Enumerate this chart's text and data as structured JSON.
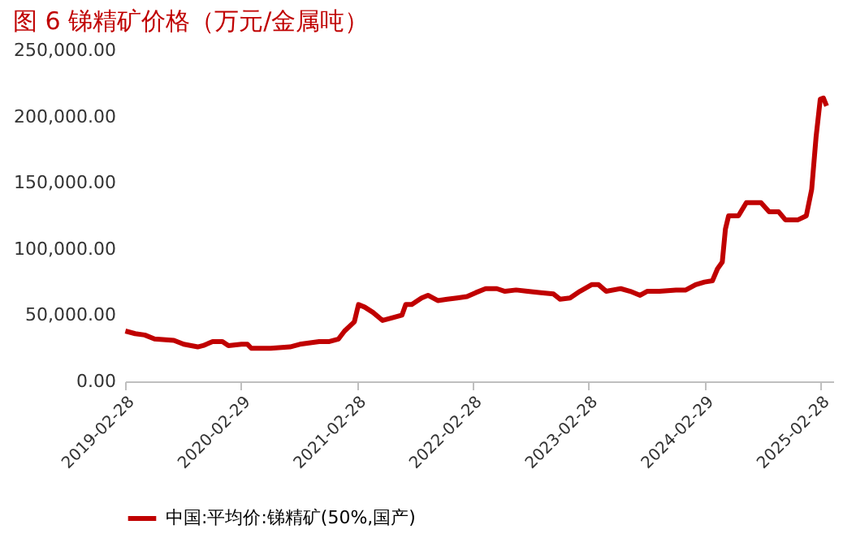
{
  "chart_data": {
    "type": "line",
    "title": "图 6 锑精矿价格（万元/金属吨）",
    "x": [
      "2019-03-01",
      "2019-04-01",
      "2019-05-01",
      "2019-06-01",
      "2019-08-01",
      "2019-09-01",
      "2019-10-15",
      "2019-11-01",
      "2019-12-01",
      "2020-01-01",
      "2020-01-20",
      "2020-03-01",
      "2020-03-20",
      "2020-04-01",
      "2020-06-01",
      "2020-08-01",
      "2020-09-01",
      "2020-11-01",
      "2020-12-01",
      "2021-01-01",
      "2021-01-20",
      "2021-02-20",
      "2021-03-05",
      "2021-03-25",
      "2021-04-20",
      "2021-05-20",
      "2021-06-20",
      "2021-07-20",
      "2021-08-01",
      "2021-08-20",
      "2021-09-20",
      "2021-10-10",
      "2021-11-10",
      "2021-12-10",
      "2022-01-10",
      "2022-02-10",
      "2022-03-10",
      "2022-04-10",
      "2022-05-15",
      "2022-06-10",
      "2022-07-15",
      "2022-08-20",
      "2022-10-01",
      "2022-11-10",
      "2022-12-01",
      "2023-01-01",
      "2023-02-01",
      "2023-03-10",
      "2023-04-01",
      "2023-04-25",
      "2023-06-10",
      "2023-07-10",
      "2023-08-10",
      "2023-09-01",
      "2023-10-10",
      "2023-12-01",
      "2024-01-01",
      "2024-02-01",
      "2024-02-29",
      "2024-03-25",
      "2024-04-10",
      "2024-04-25",
      "2024-05-05",
      "2024-05-15",
      "2024-06-15",
      "2024-07-10",
      "2024-08-25",
      "2024-09-20",
      "2024-10-20",
      "2024-11-10",
      "2024-12-20",
      "2025-01-15",
      "2025-02-01",
      "2025-02-15",
      "2025-02-28",
      "2025-03-10",
      "2025-03-20"
    ],
    "series": [
      {
        "name": "中国:平均价:锑精矿(50%,国产)",
        "color": "#c00000",
        "values": [
          38000,
          36000,
          35000,
          32000,
          31000,
          28000,
          26000,
          27000,
          30000,
          30000,
          27000,
          28000,
          28000,
          25000,
          25000,
          26000,
          28000,
          30000,
          30000,
          32000,
          38000,
          45000,
          58000,
          56000,
          52000,
          46000,
          48000,
          50000,
          58000,
          58000,
          63000,
          65000,
          61000,
          62000,
          63000,
          64000,
          67000,
          70000,
          70000,
          68000,
          69000,
          68000,
          67000,
          66000,
          62000,
          63000,
          68000,
          73000,
          73000,
          68000,
          70000,
          68000,
          65000,
          68000,
          68000,
          69000,
          69000,
          73000,
          75000,
          76000,
          85000,
          90000,
          115000,
          125000,
          125000,
          135000,
          135000,
          128000,
          128000,
          122000,
          122000,
          125000,
          145000,
          185000,
          213000,
          214000,
          208000
        ]
      }
    ],
    "xlim": [
      "2019-02-28",
      "2025-04-10"
    ],
    "xticks": [
      "2019-02-28",
      "2020-02-29",
      "2021-02-28",
      "2022-02-28",
      "2023-02-28",
      "2024-02-29",
      "2025-02-28"
    ],
    "ylim": [
      0,
      250000
    ],
    "yticks": [
      {
        "value": 0,
        "label": "0.00"
      },
      {
        "value": 50000,
        "label": "50,000.00"
      },
      {
        "value": 100000,
        "label": "100,000.00"
      },
      {
        "value": 150000,
        "label": "150,000.00"
      },
      {
        "value": 200000,
        "label": "200,000.00"
      },
      {
        "value": 250000,
        "label": "250,000.00"
      }
    ],
    "grid": false,
    "legend": "bottom",
    "marker": "none",
    "line_style": "solid"
  }
}
